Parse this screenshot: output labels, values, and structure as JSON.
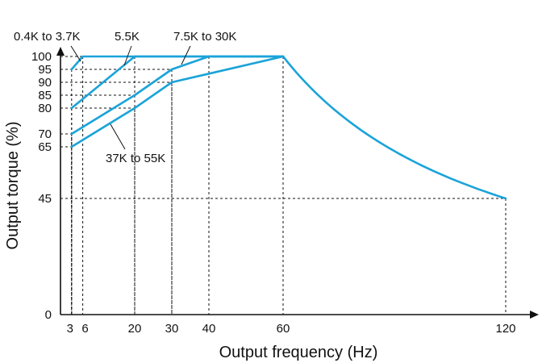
{
  "chart_data": {
    "type": "line",
    "xlabel": "Output frequency (Hz)",
    "ylabel": "Output torque (%)",
    "xlim": [
      0,
      126
    ],
    "ylim": [
      0,
      102
    ],
    "x_ticks": [
      3,
      6,
      20,
      30,
      40,
      60,
      120
    ],
    "y_ticks": [
      0,
      45,
      65,
      70,
      80,
      85,
      90,
      95,
      100
    ],
    "grid": false,
    "colors": {
      "series": "#1aa3d9",
      "axis": "#111111"
    },
    "series": [
      {
        "name": "0.4K to 3.7K",
        "x": [
          3,
          6,
          60
        ],
        "y": [
          95,
          100,
          100
        ]
      },
      {
        "name": "5.5K",
        "x": [
          3,
          20,
          60
        ],
        "y": [
          80,
          100,
          100
        ]
      },
      {
        "name": "7.5K to 30K",
        "x": [
          3,
          20,
          30,
          40,
          60
        ],
        "y": [
          70,
          85,
          95,
          100,
          100
        ]
      },
      {
        "name": "37K to 55K",
        "x": [
          3,
          20,
          30,
          60
        ],
        "y": [
          65,
          80,
          90,
          100
        ]
      }
    ],
    "common_falloff": {
      "x": [
        60,
        120
      ],
      "y": [
        100,
        45
      ],
      "shape": "convex-decay"
    },
    "guides": [
      {
        "x": 3,
        "y": 65
      },
      {
        "x": 3,
        "y": 70
      },
      {
        "x": 3,
        "y": 80
      },
      {
        "x": 3,
        "y": 95
      },
      {
        "x": 6,
        "y": 100
      },
      {
        "x": 20,
        "y": 80
      },
      {
        "x": 20,
        "y": 85
      },
      {
        "x": 20,
        "y": 100
      },
      {
        "x": 30,
        "y": 90
      },
      {
        "x": 30,
        "y": 95
      },
      {
        "x": 40,
        "y": 100
      },
      {
        "x": 60,
        "y": 100
      },
      {
        "x": 120,
        "y": 45
      }
    ],
    "annotations": [
      {
        "text": "0.4K to 3.7K",
        "series": 0
      },
      {
        "text": "5.5K",
        "series": 1
      },
      {
        "text": "7.5K to 30K",
        "series": 2
      },
      {
        "text": "37K to 55K",
        "series": 3
      }
    ]
  }
}
